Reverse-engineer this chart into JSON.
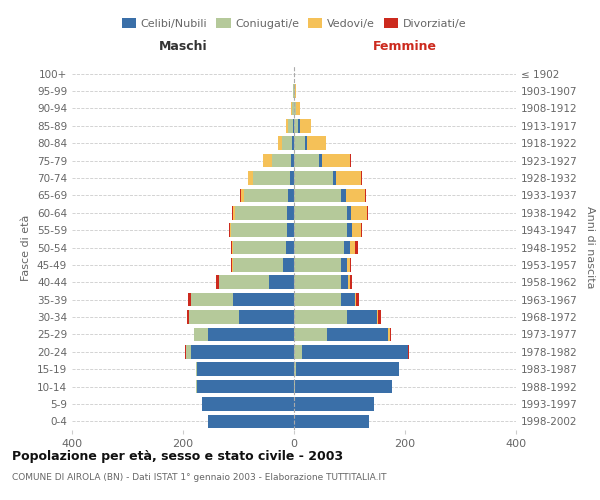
{
  "age_groups": [
    "0-4",
    "5-9",
    "10-14",
    "15-19",
    "20-24",
    "25-29",
    "30-34",
    "35-39",
    "40-44",
    "45-49",
    "50-54",
    "55-59",
    "60-64",
    "65-69",
    "70-74",
    "75-79",
    "80-84",
    "85-89",
    "90-94",
    "95-99",
    "100+"
  ],
  "birth_years": [
    "1998-2002",
    "1993-1997",
    "1988-1992",
    "1983-1987",
    "1978-1982",
    "1973-1977",
    "1968-1972",
    "1963-1967",
    "1958-1962",
    "1953-1957",
    "1948-1952",
    "1943-1947",
    "1938-1942",
    "1933-1937",
    "1928-1932",
    "1923-1927",
    "1918-1922",
    "1913-1917",
    "1908-1912",
    "1903-1907",
    "≤ 1902"
  ],
  "maschi_celibi": [
    155,
    165,
    175,
    175,
    185,
    155,
    100,
    110,
    45,
    20,
    15,
    13,
    12,
    10,
    8,
    5,
    3,
    2,
    0,
    0,
    0
  ],
  "maschi_coniugati": [
    0,
    0,
    1,
    2,
    10,
    25,
    90,
    75,
    90,
    90,
    95,
    100,
    95,
    80,
    65,
    35,
    18,
    8,
    3,
    1,
    0
  ],
  "maschi_vedovi": [
    0,
    0,
    0,
    0,
    0,
    0,
    0,
    1,
    1,
    1,
    1,
    2,
    3,
    5,
    10,
    15,
    8,
    5,
    2,
    1,
    0
  ],
  "maschi_divorziati": [
    0,
    0,
    0,
    0,
    1,
    1,
    3,
    5,
    4,
    3,
    2,
    2,
    2,
    2,
    0,
    0,
    0,
    0,
    0,
    0,
    0
  ],
  "femmine_nubili": [
    135,
    145,
    175,
    185,
    190,
    110,
    55,
    25,
    12,
    10,
    10,
    10,
    8,
    8,
    6,
    5,
    3,
    2,
    0,
    0,
    0
  ],
  "femmine_coniugate": [
    0,
    0,
    1,
    4,
    15,
    60,
    95,
    85,
    85,
    85,
    90,
    95,
    95,
    85,
    70,
    45,
    20,
    8,
    3,
    1,
    0
  ],
  "femmine_vedove": [
    0,
    0,
    0,
    0,
    1,
    3,
    1,
    2,
    3,
    5,
    10,
    15,
    28,
    35,
    45,
    50,
    35,
    20,
    8,
    3,
    0
  ],
  "femmine_divorziate": [
    0,
    0,
    0,
    0,
    1,
    1,
    5,
    5,
    5,
    2,
    5,
    2,
    2,
    2,
    2,
    2,
    0,
    0,
    0,
    0,
    0
  ],
  "color_celibi": "#3a6fa8",
  "color_coniugati": "#b5c99a",
  "color_vedovi": "#f5c158",
  "color_divorziati": "#cc2a1e",
  "title": "Popolazione per età, sesso e stato civile - 2003",
  "subtitle": "COMUNE DI AIROLA (BN) - Dati ISTAT 1° gennaio 2003 - Elaborazione TUTTITALIA.IT",
  "label_maschi": "Maschi",
  "label_femmine": "Femmine",
  "ylabel_left": "Fasce di età",
  "ylabel_right": "Anni di nascita",
  "legend_labels": [
    "Celibi/Nubili",
    "Coniugati/e",
    "Vedovi/e",
    "Divorziati/e"
  ],
  "xlim": 400,
  "bg_color": "#ffffff",
  "grid_color": "#cccccc",
  "text_color": "#666666",
  "title_color": "#111111",
  "maschi_label_color": "#333333",
  "femmine_label_color": "#cc2a1e"
}
